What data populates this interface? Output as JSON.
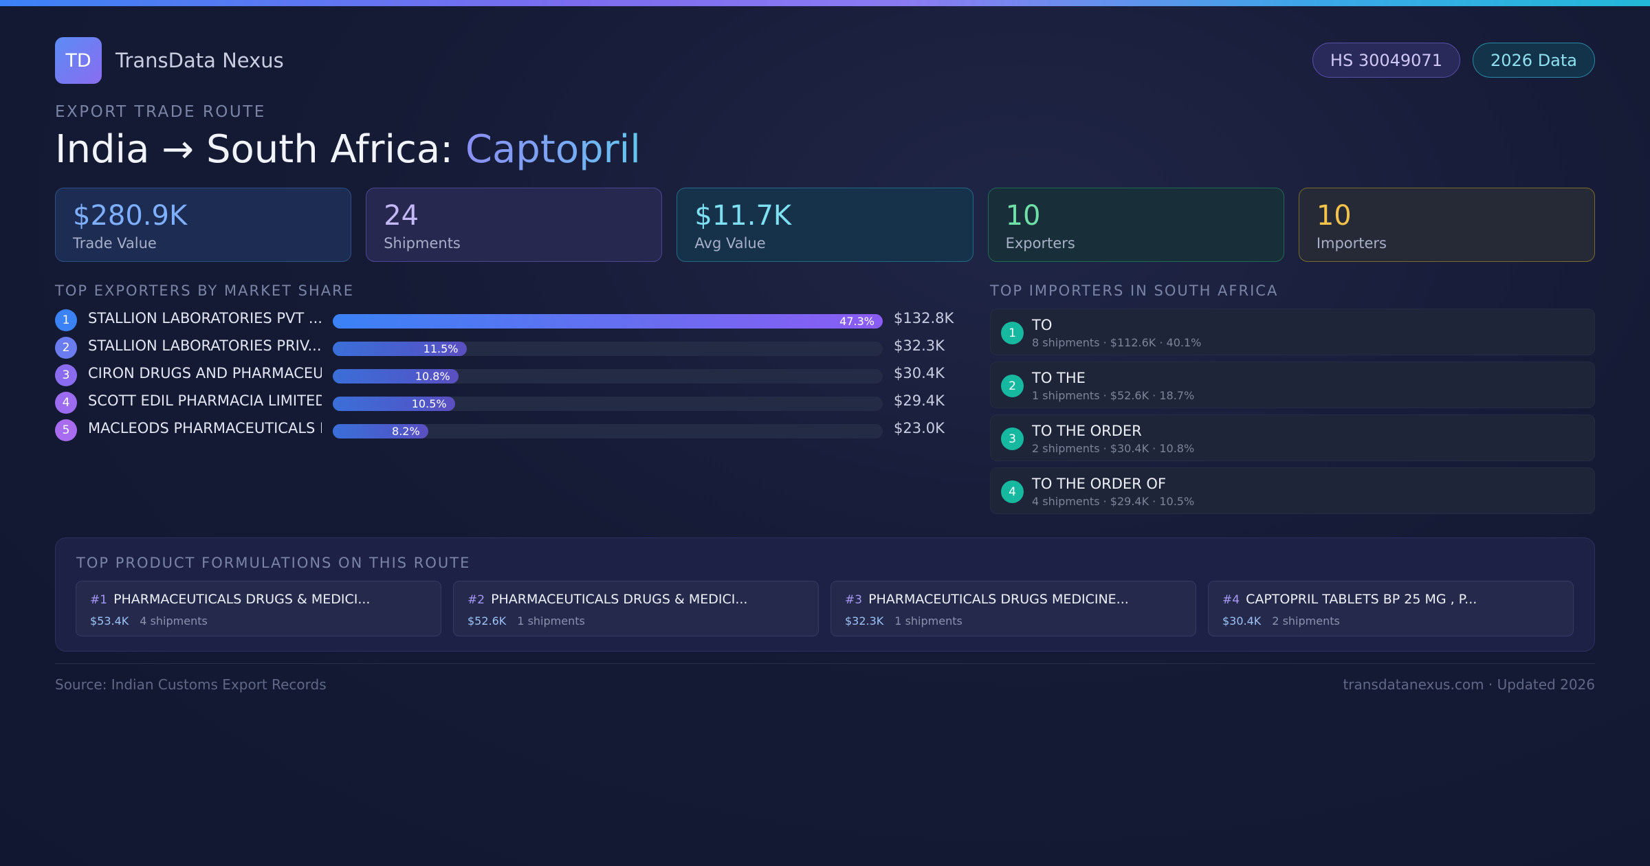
{
  "brand": {
    "logo": "TD",
    "name": "TransData Nexus"
  },
  "badges": {
    "hs": "HS 30049071",
    "year": "2026 Data"
  },
  "route": {
    "eyebrow": "EXPORT TRADE ROUTE",
    "title_prefix": "India → South Africa: ",
    "product": "Captopril"
  },
  "stats": [
    {
      "value": "$280.9K",
      "label": "Trade Value"
    },
    {
      "value": "24",
      "label": "Shipments"
    },
    {
      "value": "$11.7K",
      "label": "Avg Value"
    },
    {
      "value": "10",
      "label": "Exporters"
    },
    {
      "value": "10",
      "label": "Importers"
    }
  ],
  "exporters": {
    "label": "TOP EXPORTERS BY MARKET SHARE",
    "items": [
      {
        "rank": "1",
        "name": "STALLION LABORATORIES PVT ...",
        "share": 47.3,
        "share_label": "47.3%",
        "value": "$132.8K",
        "color": "#3b82f6"
      },
      {
        "rank": "2",
        "name": "STALLION LABORATORIES PRIV...",
        "share": 11.5,
        "share_label": "11.5%",
        "value": "$32.3K",
        "color": "#6b7bf0"
      },
      {
        "rank": "3",
        "name": "CIRON DRUGS AND PHARMACEUT...",
        "share": 10.8,
        "share_label": "10.8%",
        "value": "$30.4K",
        "color": "#8b6cf0"
      },
      {
        "rank": "4",
        "name": "SCOTT EDIL PHARMACIA LIMITED",
        "share": 10.5,
        "share_label": "10.5%",
        "value": "$29.4K",
        "color": "#9b6cf0"
      },
      {
        "rank": "5",
        "name": "MACLEODS PHARMACEUTICALS L...",
        "share": 8.2,
        "share_label": "8.2%",
        "value": "$23.0K",
        "color": "#a86cf0"
      }
    ]
  },
  "importers": {
    "label": "TOP IMPORTERS IN SOUTH AFRICA",
    "items": [
      {
        "rank": "1",
        "name": "TO",
        "meta": "8 shipments · $112.6K · 40.1%"
      },
      {
        "rank": "2",
        "name": "TO THE",
        "meta": "1 shipments · $52.6K · 18.7%"
      },
      {
        "rank": "3",
        "name": "TO THE ORDER",
        "meta": "2 shipments · $30.4K · 10.8%"
      },
      {
        "rank": "4",
        "name": "TO THE ORDER OF",
        "meta": "4 shipments · $29.4K · 10.5%"
      }
    ]
  },
  "formulations": {
    "label": "TOP PRODUCT FORMULATIONS ON THIS ROUTE",
    "items": [
      {
        "rank": "#1",
        "name": "PHARMACEUTICALS DRUGS & MEDICI...",
        "value": "$53.4K",
        "shipments": "4 shipments"
      },
      {
        "rank": "#2",
        "name": "PHARMACEUTICALS DRUGS & MEDICI...",
        "value": "$52.6K",
        "shipments": "1 shipments"
      },
      {
        "rank": "#3",
        "name": "PHARMACEUTICALS DRUGS MEDICINE...",
        "value": "$32.3K",
        "shipments": "1 shipments"
      },
      {
        "rank": "#4",
        "name": "CAPTOPRIL TABLETS BP 25 MG , P...",
        "value": "$30.4K",
        "shipments": "2 shipments"
      }
    ]
  },
  "footer": {
    "source": "Source: Indian Customs Export Records",
    "site": "transdatanexus.com · Updated 2026"
  }
}
